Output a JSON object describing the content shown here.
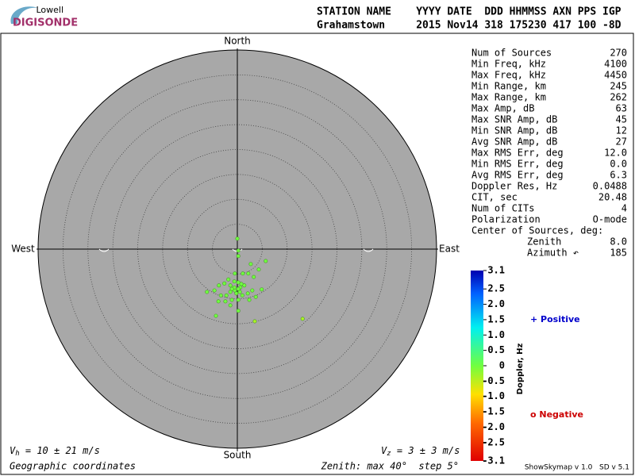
{
  "header": {
    "logo_top": "Lowell",
    "logo_main": "DIGISONDE",
    "line1": "STATION NAME    YYYY DATE  DDD HHMMSS AXN PPS IGP",
    "line2": "Grahamstown     2015 Nov14 318 175230 417 100 -8D"
  },
  "stats": {
    "rows": [
      {
        "label": "Num of Sources",
        "value": "270"
      },
      {
        "label": "Min Freq, kHz",
        "value": "4100"
      },
      {
        "label": "Max Freq, kHz",
        "value": "4450"
      },
      {
        "label": "Min Range, km",
        "value": "245"
      },
      {
        "label": "Max Range, km",
        "value": "262"
      },
      {
        "label": "Max Amp, dB",
        "value": "63"
      },
      {
        "label": "Max SNR Amp, dB",
        "value": "45"
      },
      {
        "label": "Min SNR Amp, dB",
        "value": "12"
      },
      {
        "label": "Avg SNR Amp, dB",
        "value": "27"
      },
      {
        "label": "Max RMS Err, deg",
        "value": "12.0"
      },
      {
        "label": "Min RMS Err, deg",
        "value": "0.0"
      },
      {
        "label": "Avg RMS Err, deg",
        "value": "6.3"
      },
      {
        "label": "Doppler Res, Hz",
        "value": "0.0488"
      },
      {
        "label": "CIT, sec",
        "value": "20.48"
      },
      {
        "label": "Num of CITs",
        "value": "4"
      },
      {
        "label": "Polarization",
        "value": "O-mode"
      }
    ],
    "center_title": "Center of Sources, deg:",
    "center_rows": [
      {
        "label": "Zenith",
        "value": "8.0"
      },
      {
        "label": "Azimuth ↶",
        "value": "185"
      }
    ]
  },
  "chart_data": {
    "type": "skymap",
    "directions": {
      "north": "North",
      "south": "South",
      "west": "West",
      "east": "East"
    },
    "xlim": [
      -40,
      40
    ],
    "ylim": [
      -40,
      40
    ],
    "rings": [
      5,
      10,
      15,
      20,
      25,
      30,
      35
    ],
    "x": [
      0,
      0.2,
      0.2,
      2.7,
      5.7,
      4.3,
      3.3,
      2.2,
      -1.8,
      -2.6,
      -3.7,
      -4.6,
      -1.4,
      -0.6,
      0.2,
      0.6,
      1.4,
      -0.5,
      0.5,
      -1.4,
      -2.2,
      -3.3,
      1.0,
      2.1,
      3.0,
      3.7,
      2.4,
      0.2,
      -1.1,
      -2.4,
      -3.8,
      -1.4,
      0.2,
      -4.3,
      -6.1,
      1.1,
      -0.5,
      4.9,
      3.5,
      13.1,
      -0.6,
      0.2,
      0.8,
      -1.1,
      -0.2
    ],
    "y": [
      2.1,
      -0.3,
      -1.4,
      -3.0,
      -2.4,
      -4.1,
      -5.6,
      -4.9,
      -6.1,
      -6.9,
      -7.3,
      -8.3,
      -7.3,
      -6.5,
      -6.7,
      -7.7,
      -7.3,
      -8.3,
      -8.6,
      -8.6,
      -9.3,
      -9.3,
      -9.3,
      -8.9,
      -8.3,
      -9.6,
      -10.2,
      -10.2,
      -10.2,
      -10.5,
      -10.5,
      -11.3,
      -12.4,
      -13.4,
      -8.6,
      -4.9,
      -4.9,
      -8.1,
      -14.5,
      -14.0,
      -7.7,
      -8.0,
      -7.0,
      -8.0,
      -8.9
    ],
    "doppler": [
      0,
      0,
      0,
      0,
      0,
      0,
      0,
      0,
      0,
      0,
      0,
      0,
      0,
      0,
      0,
      0,
      0,
      0,
      0,
      0,
      0,
      0,
      0,
      0,
      0,
      0,
      0,
      0,
      0,
      0,
      0,
      0,
      0,
      0,
      0,
      0,
      0,
      0,
      -0.4,
      -0.4,
      0,
      0,
      0,
      0,
      0
    ],
    "colorbar": {
      "label": "Doppler, Hz",
      "lim": [
        -3.1,
        3.1
      ],
      "ticks": [
        3.1,
        2.5,
        {
          "value": 2,
          "label": "2.0"
        },
        1.5,
        {
          "value": 1,
          "label": "1.0"
        },
        0.5,
        0,
        -0.5,
        {
          "value": -1,
          "label": "-1.0"
        },
        -1.5,
        {
          "value": -2,
          "label": "-2.0"
        },
        -2.5,
        -3.1
      ]
    },
    "legend": {
      "positive": "+ Positive",
      "negative": "o Negative"
    },
    "vh": {
      "symbol": "V",
      "sub": "h",
      "text": " = 10 ± 21 m/s"
    },
    "vz": {
      "symbol": "V",
      "sub": "z",
      "text": " = 3 ± 3 m/s"
    },
    "coords": "Geographic coordinates",
    "zenith_note": "Zenith: max 40°  step 5°",
    "version": "ShowSkymap v 1.0   SD v 5.1"
  }
}
